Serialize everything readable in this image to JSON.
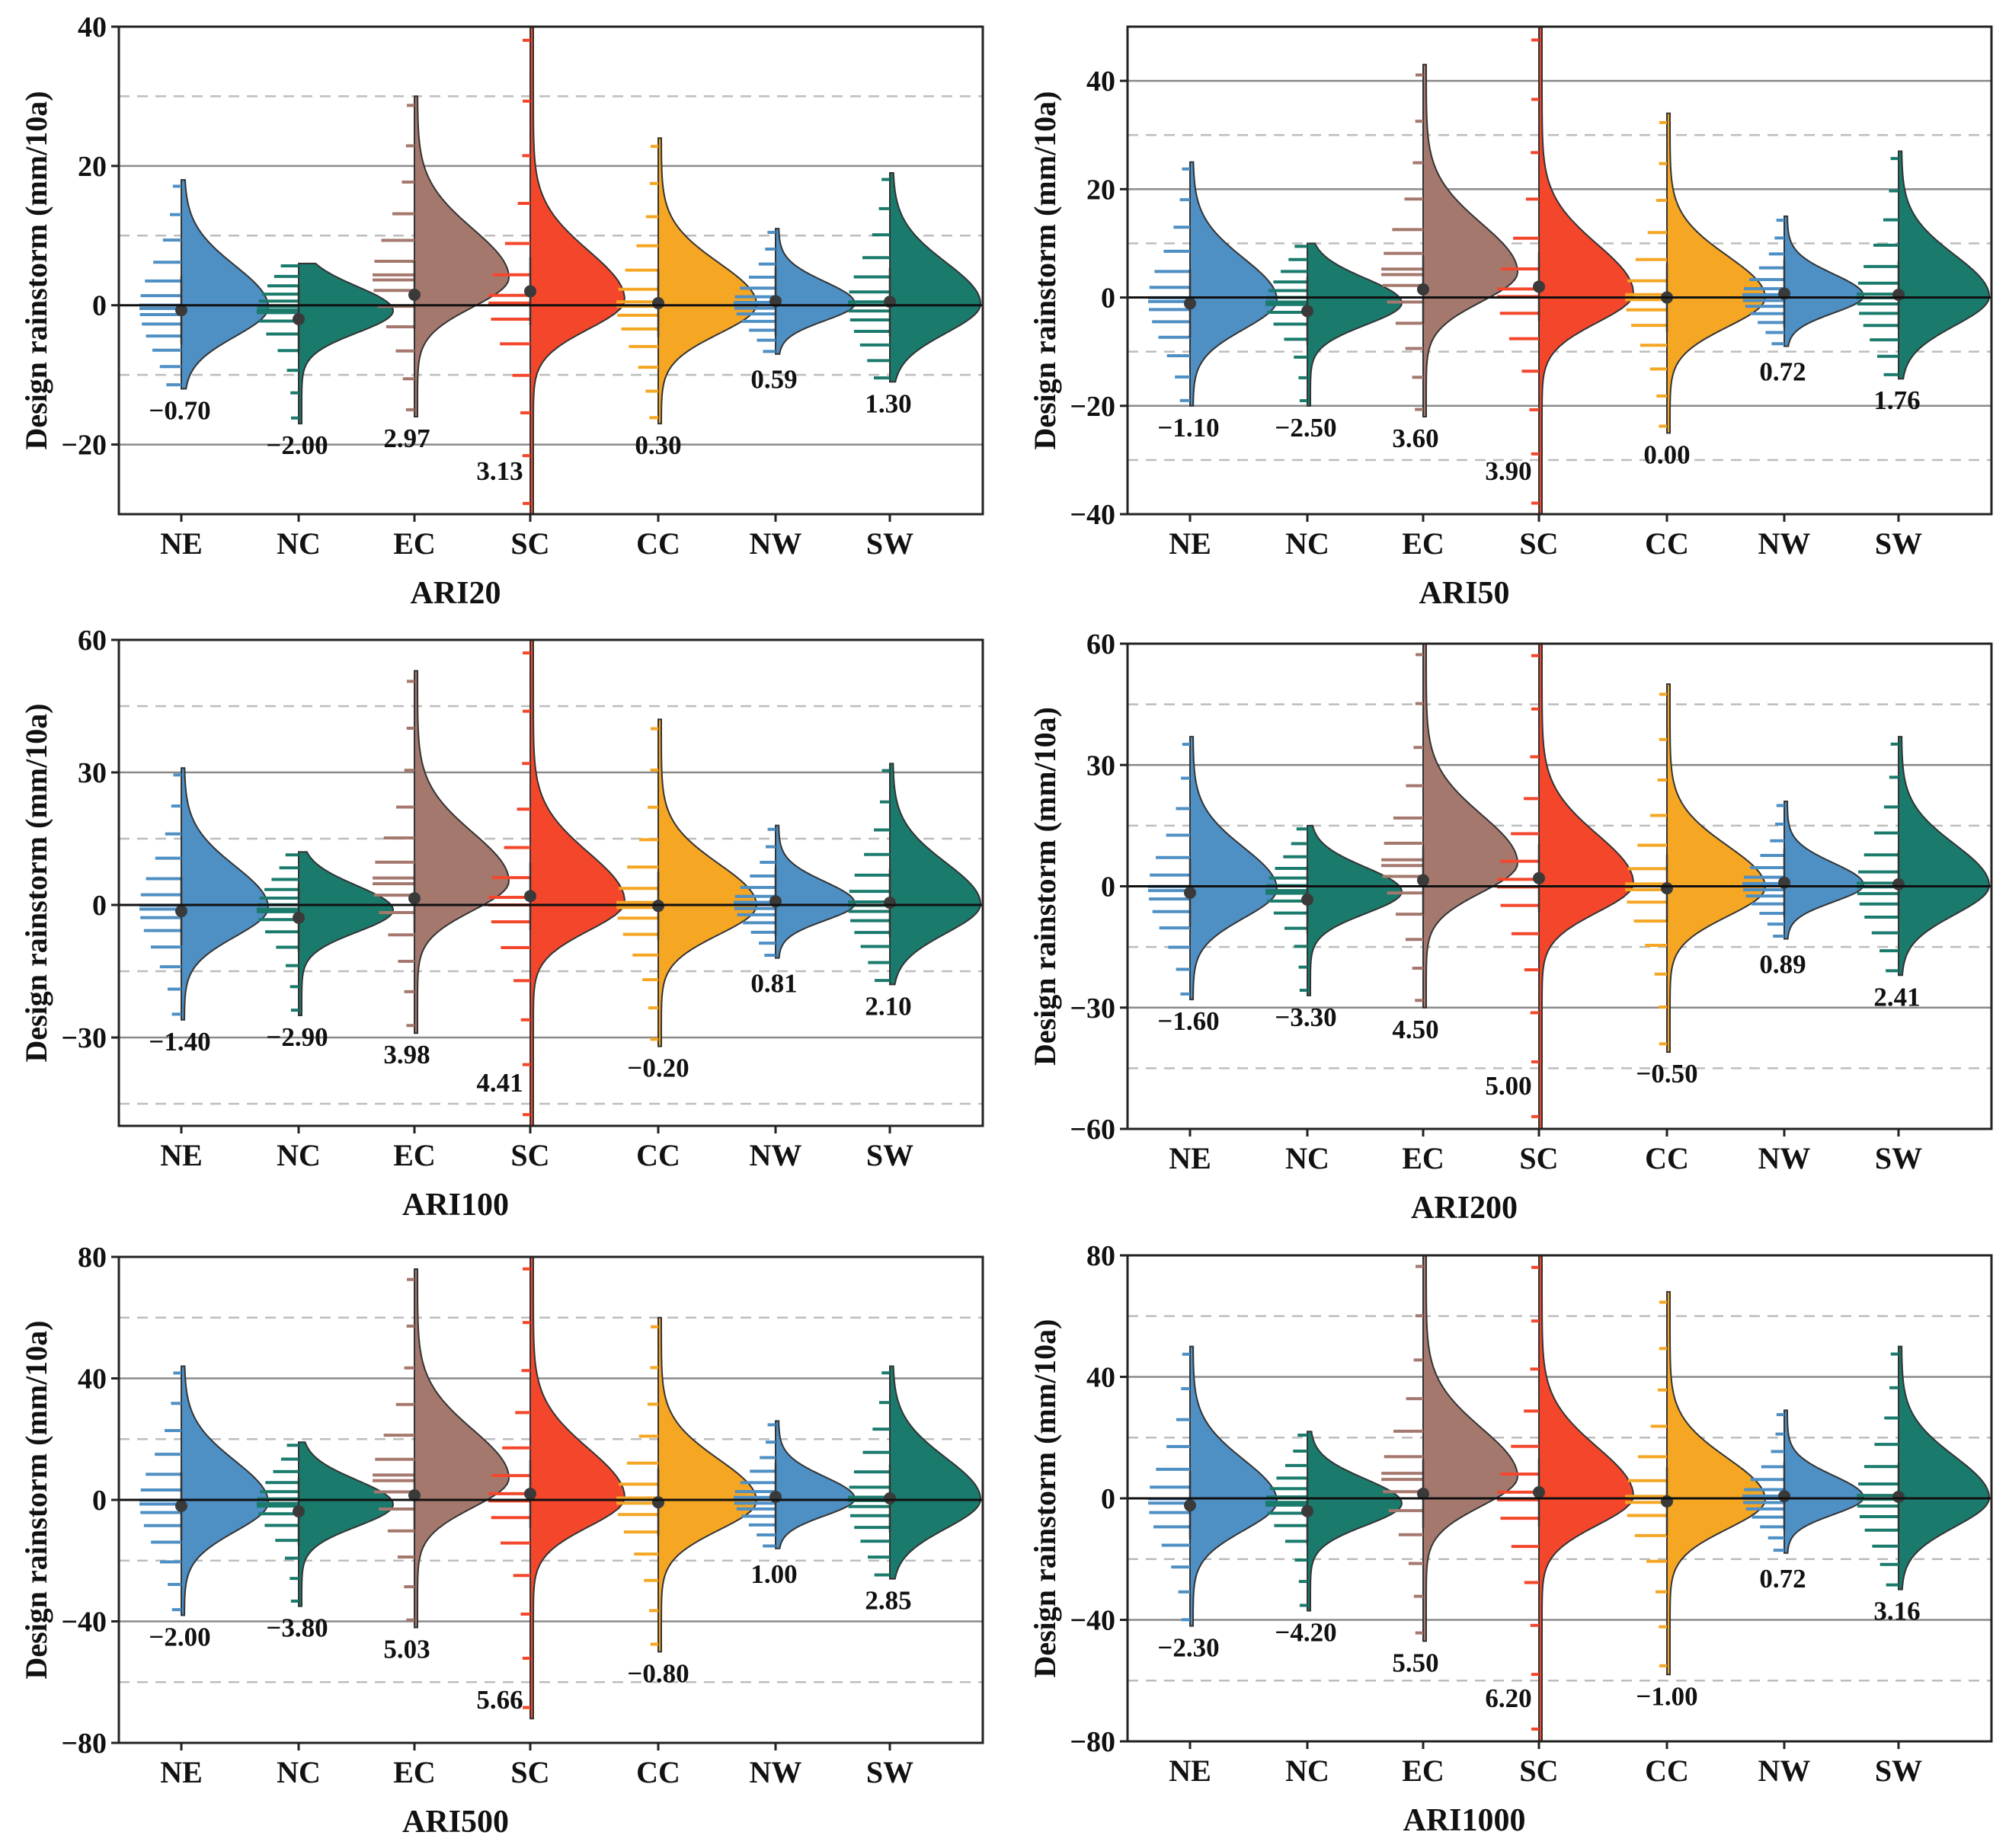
{
  "figure": {
    "region_labels": [
      "NE",
      "NC",
      "EC",
      "SC",
      "CC",
      "NW",
      "SW"
    ],
    "region_colors": [
      "#4e8fc4",
      "#1a7a6c",
      "#a5786e",
      "#f4462b",
      "#f5a623",
      "#4e8fc4",
      "#1a7a6c"
    ]
  },
  "chart_data": [
    {
      "type": "violin",
      "title": "ARI20",
      "xlabel": "ARI20",
      "ylabel": "Design rainstorm  (mm/10a)",
      "ylim": [
        -30,
        40
      ],
      "yticks": [
        -20,
        0,
        20,
        40
      ],
      "solid_gridlines": [
        -20,
        20
      ],
      "dashed_gridlines": [
        -10,
        10,
        30
      ],
      "zero_line": 0,
      "categories": [
        "NE",
        "NC",
        "EC",
        "SC",
        "CC",
        "NW",
        "SW"
      ],
      "values": [
        -0.7,
        -2.0,
        2.97,
        3.13,
        0.3,
        0.59,
        1.3
      ],
      "value_labels": [
        "−0.70",
        "−2.00",
        "2.97",
        "3.13",
        "0.30",
        "0.59",
        "1.30"
      ],
      "medians": [
        -0.7,
        -2.0,
        1.5,
        2.0,
        0.3,
        0.59,
        0.5
      ],
      "ranges": [
        [
          -12,
          18
        ],
        [
          -17,
          6
        ],
        [
          -16,
          30
        ],
        [
          -30,
          40
        ],
        [
          -17,
          24
        ],
        [
          -7,
          11
        ],
        [
          -11,
          19
        ]
      ]
    },
    {
      "type": "violin",
      "title": "ARI50",
      "xlabel": "ARI50",
      "ylabel": "Design rainstorm  (mm/10a)",
      "ylim": [
        -40,
        50
      ],
      "yticks": [
        -40,
        -20,
        0,
        20,
        40
      ],
      "solid_gridlines": [
        -20,
        20,
        40
      ],
      "dashed_gridlines": [
        -30,
        -10,
        10,
        30
      ],
      "zero_line": 0,
      "categories": [
        "NE",
        "NC",
        "EC",
        "SC",
        "CC",
        "NW",
        "SW"
      ],
      "values": [
        -1.1,
        -2.5,
        3.6,
        3.9,
        0.0,
        0.72,
        1.76
      ],
      "value_labels": [
        "−1.10",
        "−2.50",
        "3.60",
        "3.90",
        "0.00",
        "0.72",
        "1.76"
      ],
      "medians": [
        -1.1,
        -2.5,
        1.5,
        2.0,
        0.0,
        0.72,
        0.5
      ],
      "ranges": [
        [
          -20,
          25
        ],
        [
          -20,
          10
        ],
        [
          -22,
          43
        ],
        [
          -40,
          50
        ],
        [
          -25,
          34
        ],
        [
          -9,
          15
        ],
        [
          -15,
          27
        ]
      ]
    },
    {
      "type": "violin",
      "title": "ARI100",
      "xlabel": "ARI100",
      "ylabel": "Design rainstorm  (mm/10a)",
      "ylim": [
        -50,
        60
      ],
      "yticks": [
        -30,
        0,
        30,
        60
      ],
      "solid_gridlines": [
        -30,
        30
      ],
      "dashed_gridlines": [
        -45,
        -15,
        15,
        45
      ],
      "zero_line": 0,
      "categories": [
        "NE",
        "NC",
        "EC",
        "SC",
        "CC",
        "NW",
        "SW"
      ],
      "values": [
        -1.4,
        -2.9,
        3.98,
        4.41,
        -0.2,
        0.81,
        2.1
      ],
      "value_labels": [
        "−1.40",
        "−2.90",
        "3.98",
        "4.41",
        "−0.20",
        "0.81",
        "2.10"
      ],
      "medians": [
        -1.4,
        -2.9,
        1.5,
        2.0,
        -0.2,
        0.81,
        0.5
      ],
      "ranges": [
        [
          -26,
          31
        ],
        [
          -25,
          12
        ],
        [
          -29,
          53
        ],
        [
          -50,
          60
        ],
        [
          -32,
          42
        ],
        [
          -12,
          18
        ],
        [
          -18,
          32
        ]
      ]
    },
    {
      "type": "violin",
      "title": "ARI200",
      "xlabel": "ARI200",
      "ylabel": "Design rainstorm  (mm/10a)",
      "ylim": [
        -60,
        60
      ],
      "yticks": [
        -60,
        -30,
        0,
        30,
        60
      ],
      "solid_gridlines": [
        -30,
        30
      ],
      "dashed_gridlines": [
        -45,
        -15,
        15,
        45
      ],
      "zero_line": 0,
      "categories": [
        "NE",
        "NC",
        "EC",
        "SC",
        "CC",
        "NW",
        "SW"
      ],
      "values": [
        -1.6,
        -3.3,
        4.5,
        5.0,
        -0.5,
        0.89,
        2.41
      ],
      "value_labels": [
        "−1.60",
        "−3.30",
        "4.50",
        "5.00",
        "−0.50",
        "0.89",
        "2.41"
      ],
      "medians": [
        -1.6,
        -3.3,
        1.5,
        2.0,
        -0.5,
        0.89,
        0.5
      ],
      "ranges": [
        [
          -28,
          37
        ],
        [
          -27,
          15
        ],
        [
          -30,
          60
        ],
        [
          -60,
          60
        ],
        [
          -41,
          50
        ],
        [
          -13,
          21
        ],
        [
          -22,
          37
        ]
      ]
    },
    {
      "type": "violin",
      "title": "ARI500",
      "xlabel": "ARI500",
      "ylabel": "Design rainstorm  (mm/10a)",
      "ylim": [
        -80,
        80
      ],
      "yticks": [
        -80,
        -40,
        0,
        40,
        80
      ],
      "solid_gridlines": [
        -40,
        40
      ],
      "dashed_gridlines": [
        -60,
        -20,
        20,
        60
      ],
      "zero_line": 0,
      "categories": [
        "NE",
        "NC",
        "EC",
        "SC",
        "CC",
        "NW",
        "SW"
      ],
      "values": [
        -2.0,
        -3.8,
        5.03,
        5.66,
        -0.8,
        1.0,
        2.85
      ],
      "value_labels": [
        "−2.00",
        "−3.80",
        "5.03",
        "5.66",
        "−0.80",
        "1.00",
        "2.85"
      ],
      "medians": [
        -2.0,
        -3.8,
        1.5,
        2.0,
        -0.8,
        1.0,
        0.5
      ],
      "ranges": [
        [
          -38,
          44
        ],
        [
          -35,
          19
        ],
        [
          -42,
          76
        ],
        [
          -72,
          80
        ],
        [
          -50,
          60
        ],
        [
          -16,
          26
        ],
        [
          -26,
          44
        ]
      ]
    },
    {
      "type": "violin",
      "title": "ARI1000",
      "xlabel": "ARI1000",
      "ylabel": "Design rainstorm  (mm/10a)",
      "ylim": [
        -80,
        80
      ],
      "yticks": [
        -80,
        -40,
        0,
        40,
        80
      ],
      "solid_gridlines": [
        -40,
        40
      ],
      "dashed_gridlines": [
        -60,
        -20,
        20,
        60
      ],
      "zero_line": 0,
      "categories": [
        "NE",
        "NC",
        "EC",
        "SC",
        "CC",
        "NW",
        "SW"
      ],
      "values": [
        -2.3,
        -4.2,
        5.5,
        6.2,
        -1.0,
        0.72,
        3.16
      ],
      "value_labels": [
        "−2.30",
        "−4.20",
        "5.50",
        "6.20",
        "−1.00",
        "0.72",
        "3.16"
      ],
      "medians": [
        -2.3,
        -4.2,
        1.5,
        2.0,
        -1.0,
        0.72,
        0.5
      ],
      "ranges": [
        [
          -42,
          50
        ],
        [
          -37,
          22
        ],
        [
          -47,
          80
        ],
        [
          -80,
          80
        ],
        [
          -58,
          68
        ],
        [
          -18,
          29
        ],
        [
          -30,
          50
        ]
      ]
    }
  ]
}
